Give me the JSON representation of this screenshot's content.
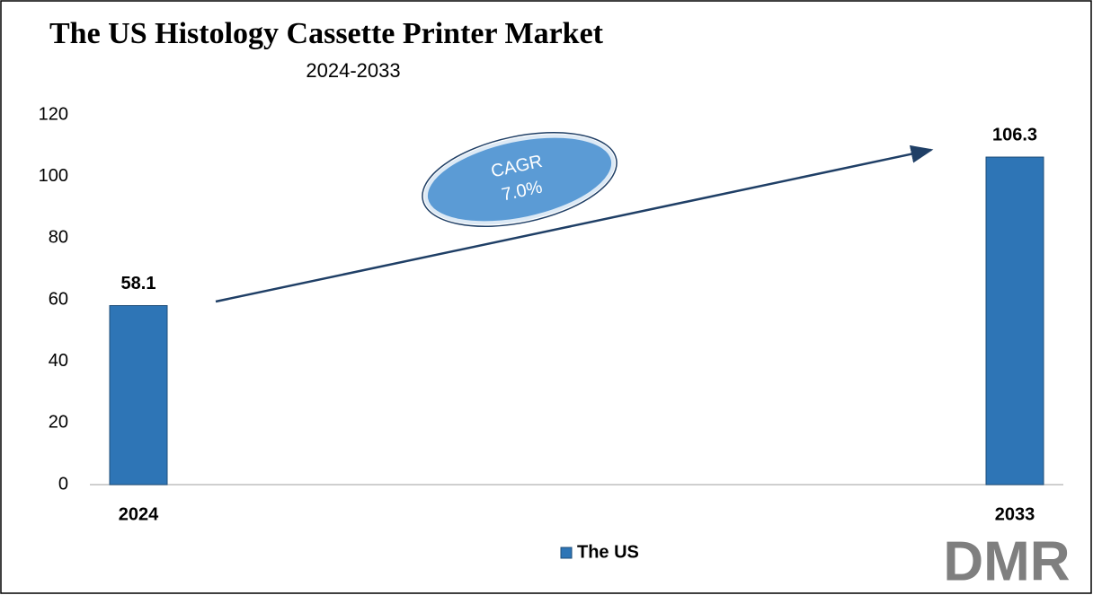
{
  "chart_data": {
    "type": "bar",
    "title": "The US Histology Cassette Printer Market",
    "subtitle": "2024-2033",
    "categories": [
      "2024",
      "2033"
    ],
    "series": [
      {
        "name": "The US",
        "color": "#2e75b6",
        "values": [
          58.1,
          106.3
        ]
      }
    ],
    "ylim": [
      0,
      120
    ],
    "yticks": [
      0,
      20,
      40,
      60,
      80,
      100,
      120
    ],
    "grid": false,
    "legend": "bottom",
    "annotation": {
      "label": "CAGR",
      "value": "7.0%"
    },
    "logo": "DMR"
  }
}
